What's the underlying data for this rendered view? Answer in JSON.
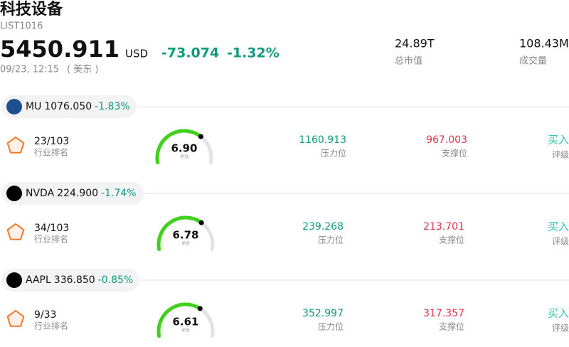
{
  "header": {
    "title": "科技设备",
    "code": "LIST1016",
    "price": "5450.911",
    "currency": "USD",
    "change": "-73.074",
    "change_pct": "-1.32%",
    "date": "09/23, 12:15",
    "timezone": "( 美东 )",
    "stats": [
      {
        "value": "24.89T",
        "label": "总市值"
      },
      {
        "value": "108.43M",
        "label": "成交量"
      }
    ]
  },
  "stocks": [
    {
      "symbol": "MU",
      "price": "1076.050",
      "change": "-1.83%",
      "rank": "23/103",
      "rank_label": "行业排名",
      "score": {
        "value": 6.9,
        "label": "6.90"
      },
      "score_label": "评分",
      "resistance": "1160.913",
      "resistance_label": "压力位",
      "support": "967.003",
      "support_label": "支撑位",
      "rating": "买入",
      "rating_label": "评级"
    },
    {
      "symbol": "NVDA",
      "price": "224.900",
      "change": "-1.74%",
      "rank": "34/103",
      "rank_label": "行业排名",
      "score": {
        "value": 6.78,
        "label": "6.78"
      },
      "score_label": "评分",
      "resistance": "239.268",
      "resistance_label": "压力位",
      "support": "213.701",
      "support_label": "支撑位",
      "rating": "买入",
      "rating_label": "评级"
    },
    {
      "symbol": "AAPL",
      "price": "336.850",
      "change": "-0.85%",
      "rank": "9/33",
      "rank_label": "行业排名",
      "score": {
        "value": 6.61,
        "label": "6.61"
      },
      "score_label": "评分",
      "resistance": "352.997",
      "resistance_label": "压力位",
      "support": "317.357",
      "support_label": "支撑位",
      "rating": "买入",
      "rating_label": "评级"
    }
  ]
}
